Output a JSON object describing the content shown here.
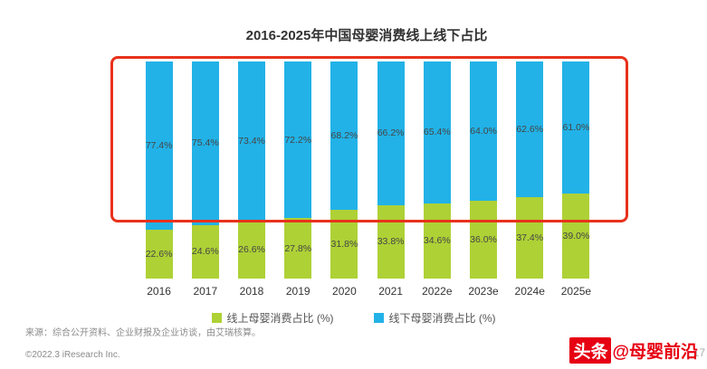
{
  "title": "2016-2025年中国母婴消费线上线下占比",
  "chart_data": {
    "type": "bar",
    "stacked": true,
    "percent_stack": true,
    "categories": [
      "2016",
      "2017",
      "2018",
      "2019",
      "2020",
      "2021",
      "2022e",
      "2023e",
      "2024e",
      "2025e"
    ],
    "series": [
      {
        "name": "线上母婴消费占比 (%)",
        "color": "#aed136",
        "values": [
          22.6,
          24.6,
          26.6,
          27.8,
          31.8,
          33.8,
          34.6,
          36.0,
          37.4,
          39.0
        ]
      },
      {
        "name": "线下母婴消费占比 (%)",
        "color": "#22b2e7",
        "values": [
          77.4,
          75.4,
          73.4,
          72.2,
          68.2,
          66.2,
          65.4,
          64.0,
          62.6,
          61.0
        ]
      }
    ],
    "ylim": [
      0,
      100
    ],
    "grid": false,
    "legend_position": "bottom",
    "annotation": {
      "type": "highlight-box",
      "color": "#e8321c",
      "around": "线下母婴消费占比(蓝色)区域"
    }
  },
  "footer": {
    "source": "来源：综合公开资料、企业财报及企业访谈，由艾瑞核算。",
    "copyright": "©2022.3 iResearch Inc."
  },
  "watermark": {
    "badge": "头条",
    "text": "@母婴前沿",
    "color": "#e60012",
    "page_number": "17"
  }
}
